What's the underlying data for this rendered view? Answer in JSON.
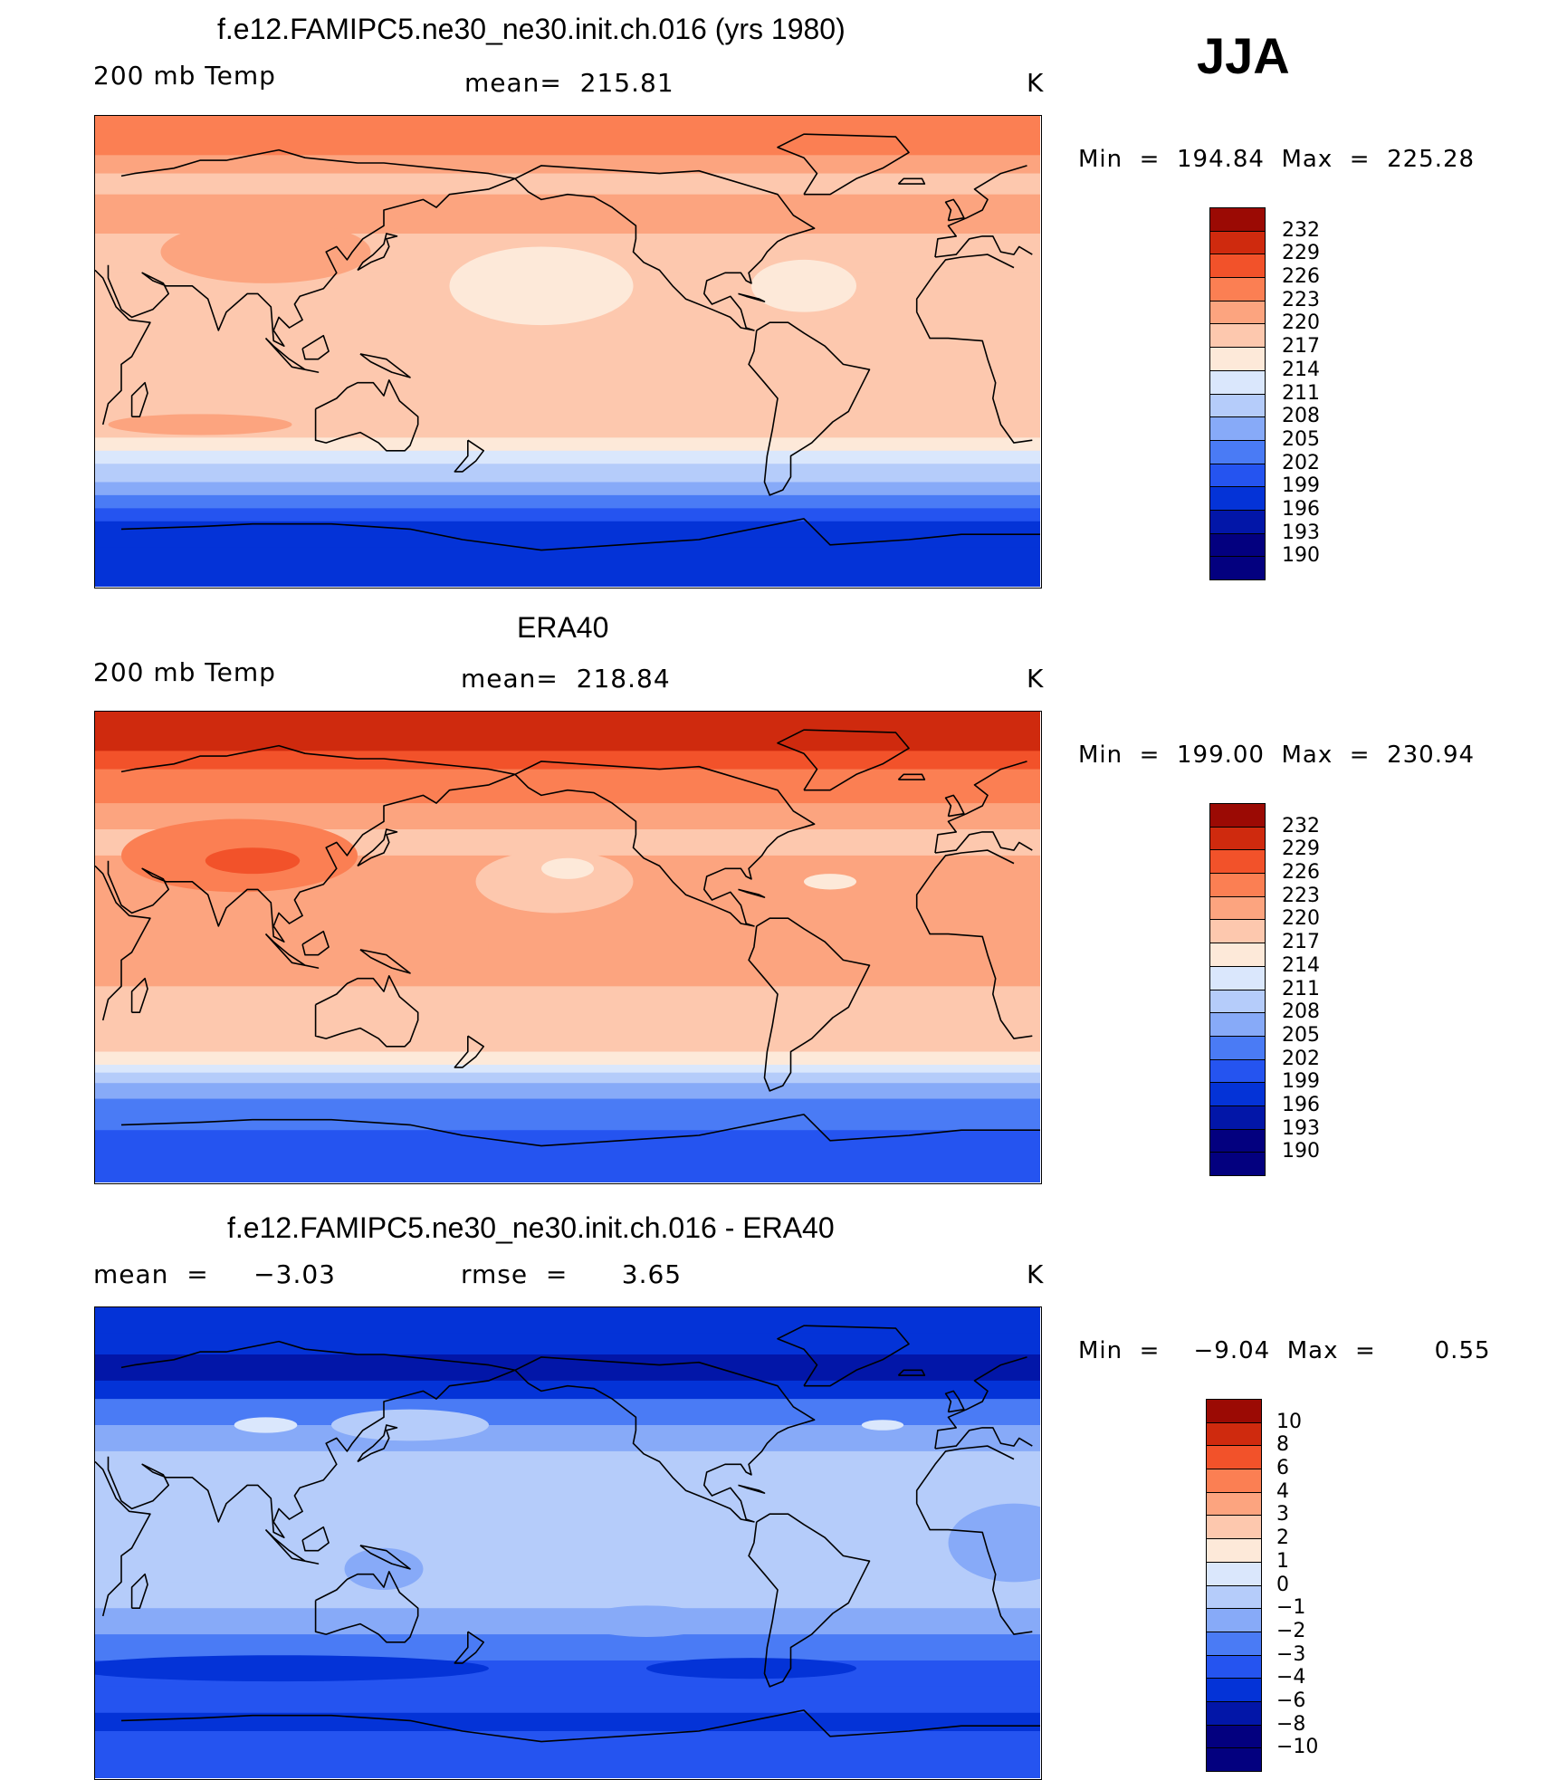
{
  "season": "JJA",
  "units": "K",
  "panels": [
    {
      "title": "f.e12.FAMIPC5.ne30_ne30.init.ch.016 (yrs 1980)",
      "left_label": "200 mb Temp",
      "center_label": "mean=  215.81",
      "right_label": "K",
      "minmax": "Min  =  194.84  Max  =  225.28",
      "scale": "abs",
      "colorbar_ticks": [
        "232",
        "229",
        "226",
        "223",
        "220",
        "217",
        "214",
        "211",
        "208",
        "205",
        "202",
        "199",
        "196",
        "193",
        "190"
      ],
      "bands": [
        {
          "lat": 90,
          "c": 11
        },
        {
          "lat": 85,
          "c": 11
        },
        {
          "lat": 75,
          "c": 10
        },
        {
          "lat": 68,
          "c": 9
        },
        {
          "lat": 60,
          "c": 10
        },
        {
          "lat": 45,
          "c": 9
        },
        {
          "lat": 30,
          "c": 9
        },
        {
          "lat": 10,
          "c": 9
        },
        {
          "lat": -10,
          "c": 9
        },
        {
          "lat": -25,
          "c": 9
        },
        {
          "lat": -33,
          "c": 8
        },
        {
          "lat": -38,
          "c": 7
        },
        {
          "lat": -43,
          "c": 6
        },
        {
          "lat": -50,
          "c": 5
        },
        {
          "lat": -55,
          "c": 4
        },
        {
          "lat": -60,
          "c": 3
        },
        {
          "lat": -65,
          "c": 2
        },
        {
          "lat": -75,
          "c": 2
        },
        {
          "lat": -90,
          "c": 2
        }
      ],
      "blobs": [
        {
          "lon": 95,
          "lat": 38,
          "rx": 40,
          "ry": 12,
          "c": 10
        },
        {
          "lon": -160,
          "lat": 25,
          "rx": 35,
          "ry": 15,
          "c": 8
        },
        {
          "lon": -60,
          "lat": 25,
          "rx": 20,
          "ry": 10,
          "c": 8
        },
        {
          "lon": 70,
          "lat": -28,
          "rx": 35,
          "ry": 4,
          "c": 10
        }
      ]
    },
    {
      "title": "ERA40",
      "left_label": "200 mb Temp",
      "center_label": "mean=  218.84",
      "right_label": "K",
      "minmax": "Min  =  199.00  Max  =  230.94",
      "scale": "abs",
      "colorbar_ticks": [
        "232",
        "229",
        "226",
        "223",
        "220",
        "217",
        "214",
        "211",
        "208",
        "205",
        "202",
        "199",
        "196",
        "193",
        "190"
      ],
      "bands": [
        {
          "lat": 90,
          "c": 13
        },
        {
          "lat": 82,
          "c": 13
        },
        {
          "lat": 75,
          "c": 12
        },
        {
          "lat": 68,
          "c": 11
        },
        {
          "lat": 55,
          "c": 10
        },
        {
          "lat": 45,
          "c": 9
        },
        {
          "lat": 35,
          "c": 10
        },
        {
          "lat": 15,
          "c": 10
        },
        {
          "lat": 0,
          "c": 10
        },
        {
          "lat": -15,
          "c": 9
        },
        {
          "lat": -30,
          "c": 9
        },
        {
          "lat": -40,
          "c": 8
        },
        {
          "lat": -45,
          "c": 7
        },
        {
          "lat": -48,
          "c": 6
        },
        {
          "lat": -52,
          "c": 5
        },
        {
          "lat": -58,
          "c": 4
        },
        {
          "lat": -70,
          "c": 3
        },
        {
          "lat": -90,
          "c": 3
        }
      ],
      "blobs": [
        {
          "lon": 85,
          "lat": 35,
          "rx": 45,
          "ry": 14,
          "c": 11
        },
        {
          "lon": 90,
          "lat": 33,
          "rx": 18,
          "ry": 5,
          "c": 12
        },
        {
          "lon": -155,
          "lat": 25,
          "rx": 30,
          "ry": 12,
          "c": 9
        },
        {
          "lon": -150,
          "lat": 30,
          "rx": 10,
          "ry": 4,
          "c": 8
        },
        {
          "lon": -50,
          "lat": 25,
          "rx": 10,
          "ry": 3,
          "c": 8
        },
        {
          "lon": 140,
          "lat": 0,
          "rx": 40,
          "ry": 10,
          "c": 10
        }
      ]
    },
    {
      "title": "f.e12.FAMIPC5.ne30_ne30.init.ch.016 - ERA40",
      "left_label": "mean  =     −3.03",
      "center_label": "rmse  =      3.65",
      "right_label": "K",
      "minmax": "Min  =    −9.04  Max  =       0.55",
      "scale": "diff",
      "colorbar_ticks": [
        "10",
        "8",
        "6",
        "4",
        "3",
        "2",
        "1",
        "0",
        "−1",
        "−2",
        "−3",
        "−4",
        "−6",
        "−8",
        "−10"
      ],
      "bands": [
        {
          "lat": 90,
          "c": 2
        },
        {
          "lat": 80,
          "c": 2
        },
        {
          "lat": 72,
          "c": 1
        },
        {
          "lat": 62,
          "c": 2
        },
        {
          "lat": 55,
          "c": 4
        },
        {
          "lat": 45,
          "c": 5
        },
        {
          "lat": 35,
          "c": 6
        },
        {
          "lat": 15,
          "c": 6
        },
        {
          "lat": 0,
          "c": 6
        },
        {
          "lat": -15,
          "c": 6
        },
        {
          "lat": -25,
          "c": 5
        },
        {
          "lat": -35,
          "c": 4
        },
        {
          "lat": -45,
          "c": 3
        },
        {
          "lat": -55,
          "c": 3
        },
        {
          "lat": -65,
          "c": 2
        },
        {
          "lat": -72,
          "c": 3
        },
        {
          "lat": -90,
          "c": 3
        }
      ],
      "blobs": [
        {
          "lon": 95,
          "lat": 45,
          "rx": 12,
          "ry": 3,
          "c": 7
        },
        {
          "lon": -30,
          "lat": 45,
          "rx": 8,
          "ry": 2,
          "c": 7
        },
        {
          "lon": 150,
          "lat": 45,
          "rx": 30,
          "ry": 6,
          "c": 6
        },
        {
          "lon": 20,
          "lat": 0,
          "rx": 25,
          "ry": 15,
          "c": 5
        },
        {
          "lon": 140,
          "lat": -10,
          "rx": 15,
          "ry": 8,
          "c": 5
        },
        {
          "lon": 100,
          "lat": -48,
          "rx": 80,
          "ry": 5,
          "c": 2
        },
        {
          "lon": -80,
          "lat": -48,
          "rx": 40,
          "ry": 4,
          "c": 2
        },
        {
          "lon": -120,
          "lat": -30,
          "rx": 25,
          "ry": 6,
          "c": 5
        }
      ]
    }
  ],
  "palettes": {
    "abs": [
      "#03007f",
      "#0216a8",
      "#0433d7",
      "#2554f0",
      "#4a7bf5",
      "#87aaf8",
      "#b5ccfa",
      "#dae7fc",
      "#fde9d9",
      "#fdc8ae",
      "#fca47f",
      "#fb7f53",
      "#f2522a",
      "#cf2a0e",
      "#9b0a04"
    ],
    "diff": [
      "#03007f",
      "#0216a8",
      "#0433d7",
      "#2554f0",
      "#4a7bf5",
      "#87aaf8",
      "#b5ccfa",
      "#dae7fc",
      "#fde9d9",
      "#fdc8ae",
      "#fca47f",
      "#fb7f53",
      "#f2522a",
      "#cf2a0e",
      "#9b0a04"
    ]
  }
}
